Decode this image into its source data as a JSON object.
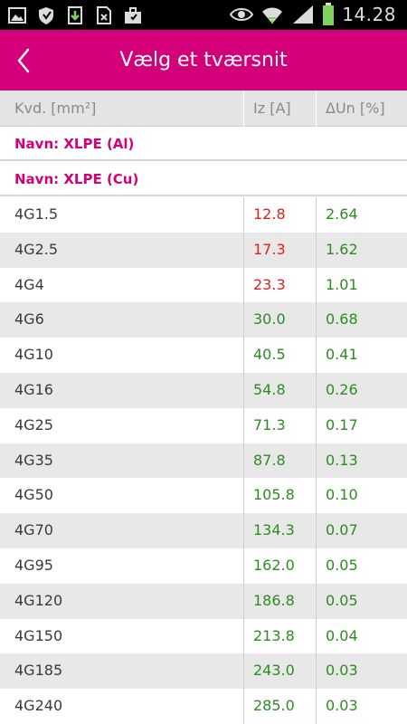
{
  "status_bar": {
    "time": "14.28",
    "left_icons": [
      "image-icon",
      "shield-icon",
      "download-icon",
      "file-icon",
      "briefcase-icon"
    ],
    "right_icons": [
      "eye-icon",
      "wifi-icon",
      "signal-icon",
      "battery-icon"
    ]
  },
  "action_bar": {
    "title": "Vælg et tværsnit",
    "back_icon": "chevron-left-icon",
    "color": "#d4007a"
  },
  "table": {
    "headers": [
      "Kvd. [mm²]",
      "Iz [A]",
      "ΔUn [%]"
    ],
    "groups": [
      {
        "label": "Navn: XLPE (Al)"
      },
      {
        "label": "Navn: XLPE (Cu)"
      }
    ],
    "rows": [
      {
        "kvd": "4G1.5",
        "iz": "12.8",
        "dun": "2.64",
        "iz_status": "warning"
      },
      {
        "kvd": "4G2.5",
        "iz": "17.3",
        "dun": "1.62",
        "iz_status": "warning"
      },
      {
        "kvd": "4G4",
        "iz": "23.3",
        "dun": "1.01",
        "iz_status": "warning"
      },
      {
        "kvd": "4G6",
        "iz": "30.0",
        "dun": "0.68",
        "iz_status": "ok"
      },
      {
        "kvd": "4G10",
        "iz": "40.5",
        "dun": "0.41",
        "iz_status": "ok"
      },
      {
        "kvd": "4G16",
        "iz": "54.8",
        "dun": "0.26",
        "iz_status": "ok"
      },
      {
        "kvd": "4G25",
        "iz": "71.3",
        "dun": "0.17",
        "iz_status": "ok"
      },
      {
        "kvd": "4G35",
        "iz": "87.8",
        "dun": "0.13",
        "iz_status": "ok"
      },
      {
        "kvd": "4G50",
        "iz": "105.8",
        "dun": "0.10",
        "iz_status": "ok"
      },
      {
        "kvd": "4G70",
        "iz": "134.3",
        "dun": "0.07",
        "iz_status": "ok"
      },
      {
        "kvd": "4G95",
        "iz": "162.0",
        "dun": "0.05",
        "iz_status": "ok"
      },
      {
        "kvd": "4G120",
        "iz": "186.8",
        "dun": "0.05",
        "iz_status": "ok"
      },
      {
        "kvd": "4G150",
        "iz": "213.8",
        "dun": "0.04",
        "iz_status": "ok"
      },
      {
        "kvd": "4G185",
        "iz": "243.0",
        "dun": "0.03",
        "iz_status": "ok"
      },
      {
        "kvd": "4G240",
        "iz": "285.0",
        "dun": "0.03",
        "iz_status": "ok"
      }
    ]
  },
  "colors": {
    "accent": "#d4007a",
    "ok": "#2e8b22",
    "warning": "#e0201c",
    "alt_row": "#e8e8e8"
  }
}
